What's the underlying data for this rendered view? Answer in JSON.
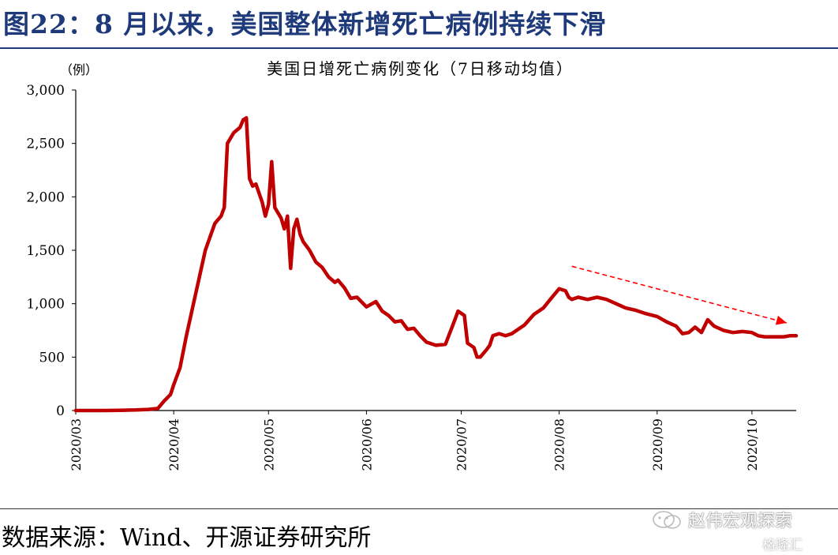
{
  "figure_title": "图22：8 月以来，美国整体新增死亡病例持续下滑",
  "source": "数据来源：Wind、开源证券研究所",
  "watermark": {
    "account": "赵伟宏观探索",
    "brand": "格隆汇"
  },
  "colors": {
    "line": "#c00000",
    "title": "#1f3a7a",
    "axis": "#000000"
  },
  "chart_data": {
    "type": "line",
    "title": "美国日增死亡病例变化（7日移动均值）",
    "unit_label": "（例）",
    "ylim": [
      0,
      3000
    ],
    "yticks": [
      0,
      500,
      1000,
      1500,
      2000,
      2500,
      3000
    ],
    "ytick_labels": [
      "0",
      "500",
      "1,000",
      "1,500",
      "2,000",
      "2,500",
      "3,000"
    ],
    "xlim": [
      "2020-03-01",
      "2020-10-15"
    ],
    "xticks": [
      "2020-03-01",
      "2020-04-01",
      "2020-05-01",
      "2020-06-01",
      "2020-07-01",
      "2020-08-01",
      "2020-09-01",
      "2020-10-01"
    ],
    "xtick_labels": [
      "2020/03",
      "2020/04",
      "2020/05",
      "2020/06",
      "2020/07",
      "2020/08",
      "2020/09",
      "2020/10"
    ],
    "grid": false,
    "series": [
      {
        "x": [
          "2020-03-01",
          "2020-03-10",
          "2020-03-15",
          "2020-03-20",
          "2020-03-24",
          "2020-03-27",
          "2020-03-29",
          "2020-03-31",
          "2020-04-01",
          "2020-04-03",
          "2020-04-05",
          "2020-04-08",
          "2020-04-11",
          "2020-04-14",
          "2020-04-16",
          "2020-04-17",
          "2020-04-18",
          "2020-04-20",
          "2020-04-22",
          "2020-04-23",
          "2020-04-24",
          "2020-04-25",
          "2020-04-26",
          "2020-04-27",
          "2020-04-29",
          "2020-04-30",
          "2020-05-01",
          "2020-05-02",
          "2020-05-03",
          "2020-05-05",
          "2020-05-06",
          "2020-05-07",
          "2020-05-08",
          "2020-05-09",
          "2020-05-10",
          "2020-05-11",
          "2020-05-12",
          "2020-05-14",
          "2020-05-16",
          "2020-05-18",
          "2020-05-20",
          "2020-05-22",
          "2020-05-23",
          "2020-05-25",
          "2020-05-27",
          "2020-05-29",
          "2020-06-01",
          "2020-06-04",
          "2020-06-06",
          "2020-06-08",
          "2020-06-10",
          "2020-06-12",
          "2020-06-14",
          "2020-06-16",
          "2020-06-18",
          "2020-06-20",
          "2020-06-23",
          "2020-06-26",
          "2020-06-29",
          "2020-06-30",
          "2020-07-02",
          "2020-07-03",
          "2020-07-05",
          "2020-07-06",
          "2020-07-07",
          "2020-07-09",
          "2020-07-10",
          "2020-07-11",
          "2020-07-13",
          "2020-07-15",
          "2020-07-17",
          "2020-07-19",
          "2020-07-21",
          "2020-07-24",
          "2020-07-27",
          "2020-07-30",
          "2020-08-01",
          "2020-08-03",
          "2020-08-04",
          "2020-08-05",
          "2020-08-07",
          "2020-08-10",
          "2020-08-13",
          "2020-08-16",
          "2020-08-19",
          "2020-08-22",
          "2020-08-25",
          "2020-08-28",
          "2020-09-01",
          "2020-09-04",
          "2020-09-07",
          "2020-09-09",
          "2020-09-11",
          "2020-09-13",
          "2020-09-15",
          "2020-09-17",
          "2020-09-19",
          "2020-09-22",
          "2020-09-25",
          "2020-09-28",
          "2020-10-01",
          "2020-10-03",
          "2020-10-05",
          "2020-10-07",
          "2020-10-09",
          "2020-10-11",
          "2020-10-13",
          "2020-10-15"
        ],
        "values": [
          0,
          0,
          2,
          5,
          10,
          20,
          90,
          150,
          240,
          400,
          700,
          1100,
          1500,
          1750,
          1820,
          1900,
          2500,
          2600,
          2650,
          2720,
          2740,
          2170,
          2100,
          2120,
          1950,
          1820,
          1930,
          2330,
          1900,
          1800,
          1700,
          1820,
          1330,
          1700,
          1790,
          1650,
          1580,
          1500,
          1390,
          1340,
          1250,
          1200,
          1220,
          1150,
          1050,
          1060,
          970,
          1020,
          930,
          890,
          830,
          840,
          760,
          770,
          700,
          640,
          610,
          620,
          850,
          930,
          890,
          630,
          590,
          500,
          500,
          570,
          610,
          700,
          720,
          700,
          720,
          760,
          800,
          900,
          960,
          1070,
          1140,
          1120,
          1060,
          1040,
          1060,
          1040,
          1060,
          1040,
          1000,
          960,
          940,
          910,
          880,
          830,
          790,
          720,
          730,
          780,
          730,
          850,
          790,
          750,
          730,
          740,
          730,
          700,
          690,
          690,
          690,
          690,
          700,
          700
        ]
      }
    ],
    "annotations": [
      {
        "type": "trend-arrow",
        "from": [
          "2020-08-05",
          1350
        ],
        "to": [
          "2020-10-12",
          820
        ],
        "style": "dashed",
        "color": "#ff0000"
      }
    ]
  }
}
